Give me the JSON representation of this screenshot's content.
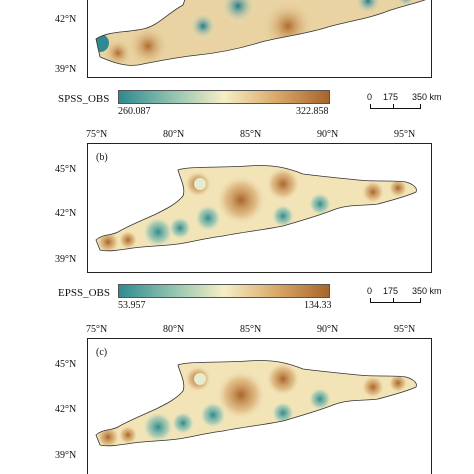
{
  "panels": [
    {
      "id": "a",
      "label": "",
      "lat_ticks": [
        "42°N",
        "39°N"
      ]
    },
    {
      "id": "b",
      "label": "(b)",
      "lon_ticks": [
        "75°N",
        "80°N",
        "85°N",
        "90°N",
        "95°N"
      ],
      "lat_ticks": [
        "45°N",
        "42°N",
        "39°N"
      ]
    },
    {
      "id": "c",
      "label": "(c)",
      "lon_ticks": [
        "75°N",
        "80°N",
        "85°N",
        "90°N",
        "95°N"
      ],
      "lat_ticks": [
        "45°N",
        "42°N",
        "39°N"
      ]
    }
  ],
  "colorbars": [
    {
      "title": "SPSS_OBS",
      "min": "260.087",
      "max": "322.858"
    },
    {
      "title": "EPSS_OBS",
      "min": "53.957",
      "max": "134.33"
    }
  ],
  "scalebar": {
    "labels": [
      "0",
      "175",
      "350 km"
    ]
  },
  "colors": {
    "low": "#2e8a90",
    "mid": "#f6eec6",
    "high": "#a8642a"
  }
}
